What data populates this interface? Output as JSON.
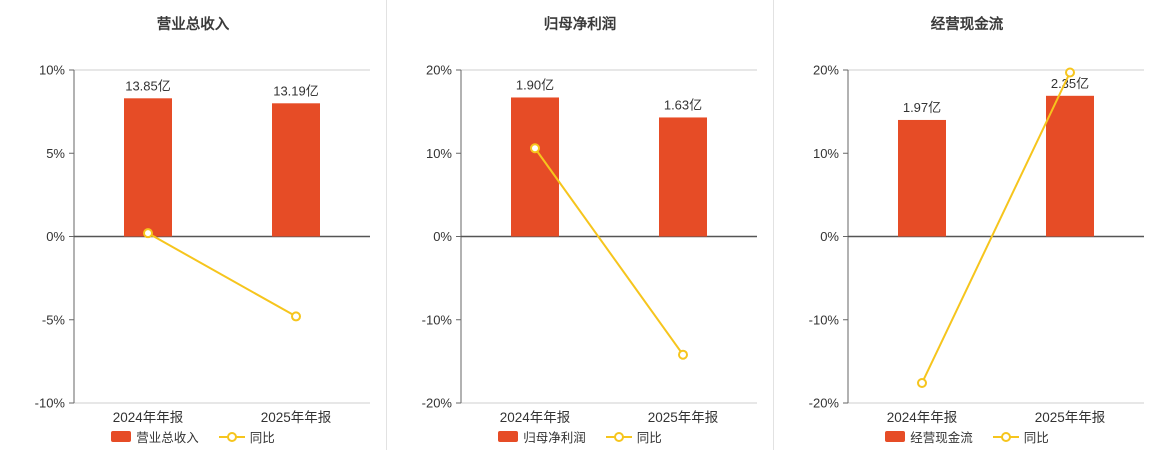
{
  "colors": {
    "bar": "#e64c26",
    "line": "#f6c51d",
    "axis": "#666666",
    "zero_line": "#555555",
    "boundary": "#cfcfcf",
    "text": "#333333",
    "divider": "#e2e2e2",
    "background": "#ffffff"
  },
  "chart_data": [
    {
      "type": "bar",
      "title": "营业总收入",
      "categories": [
        "2024年年报",
        "2025年年报"
      ],
      "ylim": [
        -10,
        10
      ],
      "yticks": [
        10,
        5,
        0,
        -5,
        -10
      ],
      "ytick_labels": [
        "10%",
        "5%",
        "0%",
        "-5%",
        "-10%"
      ],
      "bars": {
        "name": "营业总收入",
        "value_labels": [
          "13.85亿",
          "13.19亿"
        ],
        "display_heights": [
          8.3,
          8.0
        ]
      },
      "line": {
        "name": "同比",
        "values": [
          0.2,
          -4.8
        ]
      },
      "legend": [
        "营业总收入",
        "同比"
      ],
      "legend_position": "bottom",
      "grid": "boundary-only"
    },
    {
      "type": "bar",
      "title": "归母净利润",
      "categories": [
        "2024年年报",
        "2025年年报"
      ],
      "ylim": [
        -20,
        20
      ],
      "yticks": [
        20,
        10,
        0,
        -10,
        -20
      ],
      "ytick_labels": [
        "20%",
        "10%",
        "0%",
        "-10%",
        "-20%"
      ],
      "bars": {
        "name": "归母净利润",
        "value_labels": [
          "1.90亿",
          "1.63亿"
        ],
        "display_heights": [
          16.7,
          14.3
        ]
      },
      "line": {
        "name": "同比",
        "values": [
          10.6,
          -14.2
        ]
      },
      "legend": [
        "归母净利润",
        "同比"
      ],
      "legend_position": "bottom",
      "grid": "boundary-only"
    },
    {
      "type": "bar",
      "title": "经营现金流",
      "categories": [
        "2024年年报",
        "2025年年报"
      ],
      "ylim": [
        -20,
        20
      ],
      "yticks": [
        20,
        10,
        0,
        -10,
        -20
      ],
      "ytick_labels": [
        "20%",
        "10%",
        "0%",
        "-10%",
        "-20%"
      ],
      "bars": {
        "name": "经营现金流",
        "value_labels": [
          "1.97亿",
          "2.35亿"
        ],
        "display_heights": [
          14.0,
          16.9
        ]
      },
      "line": {
        "name": "同比",
        "values": [
          -17.6,
          19.7
        ]
      },
      "legend": [
        "经营现金流",
        "同比"
      ],
      "legend_position": "bottom",
      "grid": "boundary-only"
    }
  ]
}
